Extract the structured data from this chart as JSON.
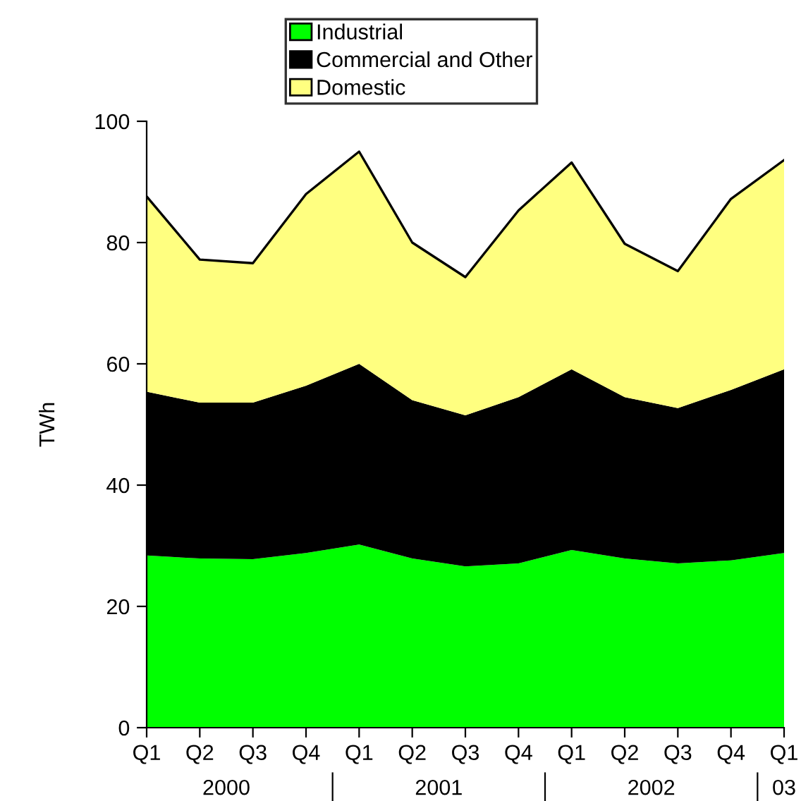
{
  "chart_data": {
    "type": "area",
    "stacked": true,
    "ylabel": "TWh",
    "categories": [
      "Q1",
      "Q2",
      "Q3",
      "Q4",
      "Q1",
      "Q2",
      "Q3",
      "Q4",
      "Q1",
      "Q2",
      "Q3",
      "Q4",
      "Q1"
    ],
    "series": [
      {
        "name": "Industrial",
        "color": "#00ff00",
        "values": [
          28.4,
          27.9,
          27.8,
          28.8,
          30.2,
          27.9,
          26.6,
          27.1,
          29.3,
          27.9,
          27.1,
          27.6,
          28.8
        ]
      },
      {
        "name": "Commercial and Other",
        "color": "#000000",
        "values": [
          27.0,
          25.7,
          25.8,
          27.6,
          29.8,
          26.1,
          24.9,
          27.4,
          29.8,
          26.6,
          25.6,
          28.1,
          30.3
        ]
      },
      {
        "name": "Domestic",
        "color": "#ffff80",
        "values": [
          32.2,
          23.6,
          23.0,
          31.6,
          35.0,
          26.0,
          22.8,
          30.8,
          34.1,
          25.3,
          22.6,
          31.5,
          34.5
        ]
      }
    ],
    "ylim": [
      0,
      100
    ],
    "yticks": [
      0,
      20,
      40,
      60,
      80,
      100
    ],
    "grid": false,
    "legend": "top",
    "annotations": [
      "2000",
      "2001",
      "2002",
      "03"
    ]
  }
}
